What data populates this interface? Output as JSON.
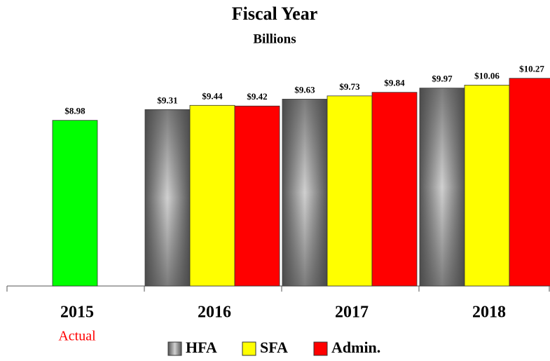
{
  "chart_data": {
    "type": "bar",
    "title": "Fiscal Year",
    "subtitle": "Billions",
    "categories": [
      "2015",
      "2016",
      "2017",
      "2018"
    ],
    "category_notes": [
      "Actual",
      null,
      null,
      null
    ],
    "actual": {
      "color": "#00ff00",
      "values": [
        8.98,
        null,
        null,
        null
      ],
      "value_labels": [
        "$8.98",
        null,
        null,
        null
      ]
    },
    "series": [
      {
        "name": "HFA",
        "color": "#808080",
        "values": [
          null,
          9.31,
          9.63,
          9.97
        ],
        "value_labels": [
          null,
          "$9.31",
          "$9.63",
          "$9.97"
        ]
      },
      {
        "name": "SFA",
        "color": "#ffff00",
        "values": [
          null,
          9.44,
          9.73,
          10.06
        ],
        "value_labels": [
          null,
          "$9.44",
          "$9.73",
          "$10.06"
        ]
      },
      {
        "name": "Admin.",
        "color": "#ff0000",
        "values": [
          null,
          9.42,
          9.84,
          10.27
        ],
        "value_labels": [
          null,
          "$9.42",
          "$9.84",
          "$10.27"
        ]
      }
    ],
    "ylim": [
      3.9,
      10.5
    ],
    "legend": "bottom"
  }
}
